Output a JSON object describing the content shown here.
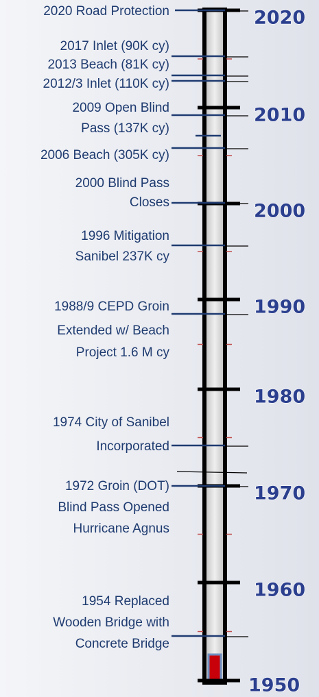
{
  "years": [
    "2020",
    "2010",
    "2000",
    "1990",
    "1980",
    "1970",
    "1960",
    "1950"
  ],
  "events": [
    {
      "lines": [
        "2020 Road Protection"
      ]
    },
    {
      "lines": [
        "2017 Inlet (90K cy)"
      ]
    },
    {
      "lines": [
        "2013 Beach (81K cy)"
      ]
    },
    {
      "lines": [
        "2012/3 Inlet (110K cy)"
      ]
    },
    {
      "lines": [
        "2009 Open Blind",
        "Pass (137K cy)"
      ]
    },
    {
      "lines": [
        "2006 Beach (305K cy)"
      ]
    },
    {
      "lines": [
        "2000 Blind Pass",
        "Closes"
      ]
    },
    {
      "lines": [
        "1996 Mitigation",
        "Sanibel 237K cy"
      ]
    },
    {
      "lines": [
        "1988/9 CEPD Groin",
        "Extended w/ Beach",
        "Project 1.6 M cy"
      ]
    },
    {
      "lines": [
        "1974 City of Sanibel",
        "Incorporated"
      ]
    },
    {
      "lines": [
        "1972 Groin (DOT)",
        "Blind Pass Opened",
        "Hurricane Agnus"
      ]
    },
    {
      "lines": [
        "1954 Replaced",
        "Wooden Bridge with",
        "Concrete Bridge"
      ]
    }
  ]
}
